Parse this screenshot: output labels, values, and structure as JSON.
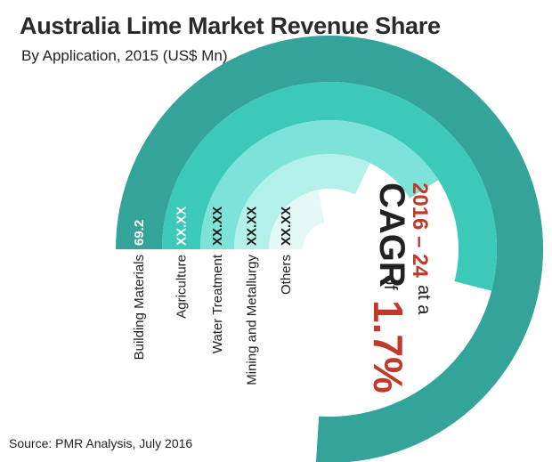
{
  "header": {
    "title": "Australia Lime Market Revenue Share",
    "subtitle": "By Application, 2015 (US$ Mn)"
  },
  "source": "Source: PMR Analysis, July 2016",
  "cagr": {
    "range": "2016 – 24",
    "at": "at a",
    "word": "CAGR",
    "of": "of",
    "value": "1.7%"
  },
  "colors": {
    "building_materials": "#34a39a",
    "agriculture": "#3cc9b9",
    "water_treatment": "#7de3d8",
    "mining_metallurgy": "#b3f0ea",
    "others": "#e4f8f6",
    "cagr_red": "#c0392b"
  },
  "chart_data": {
    "type": "radial-bar",
    "title": "Australia Lime Market Revenue Share",
    "subtitle": "By Application, 2015 (US$ Mn)",
    "categories": [
      "Building Materials",
      "Agriculture",
      "Water Treatment",
      "Mining and Metallurgy",
      "Others"
    ],
    "value_labels": [
      "69.2",
      "XX.XX",
      "XX.XX",
      "XX.XX",
      "XX.XX"
    ],
    "values": [
      69.2,
      null,
      null,
      null,
      null
    ],
    "shares_estimated": [
      0.76,
      0.54,
      0.41,
      0.32,
      0.22
    ]
  }
}
